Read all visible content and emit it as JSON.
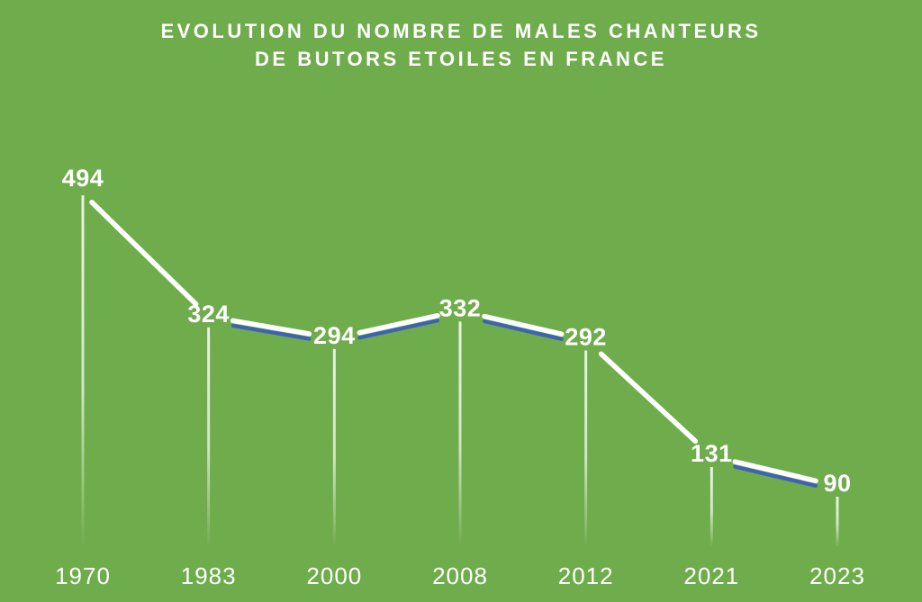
{
  "title": {
    "line1": "EVOLUTION DU NOMBRE DE MALES CHANTEURS",
    "line2": "DE BUTORS ETOILES EN FRANCE"
  },
  "chart_data": {
    "type": "line",
    "title": "EVOLUTION DU NOMBRE DE MALES CHANTEURS DE BUTORS ETOILES EN FRANCE",
    "categories": [
      "1970",
      "1983",
      "2000",
      "2008",
      "2012",
      "2021",
      "2023"
    ],
    "values": [
      494,
      324,
      294,
      332,
      292,
      131,
      90
    ],
    "xlabel": "",
    "ylabel": "",
    "ylim": [
      0,
      520
    ],
    "grid": false,
    "legend": false,
    "point_labels_visible": true,
    "colors": {
      "background": "#6fac4c",
      "line": "#ffffff",
      "line_shadow": "#3e63b2",
      "text": "#ffffff"
    }
  }
}
